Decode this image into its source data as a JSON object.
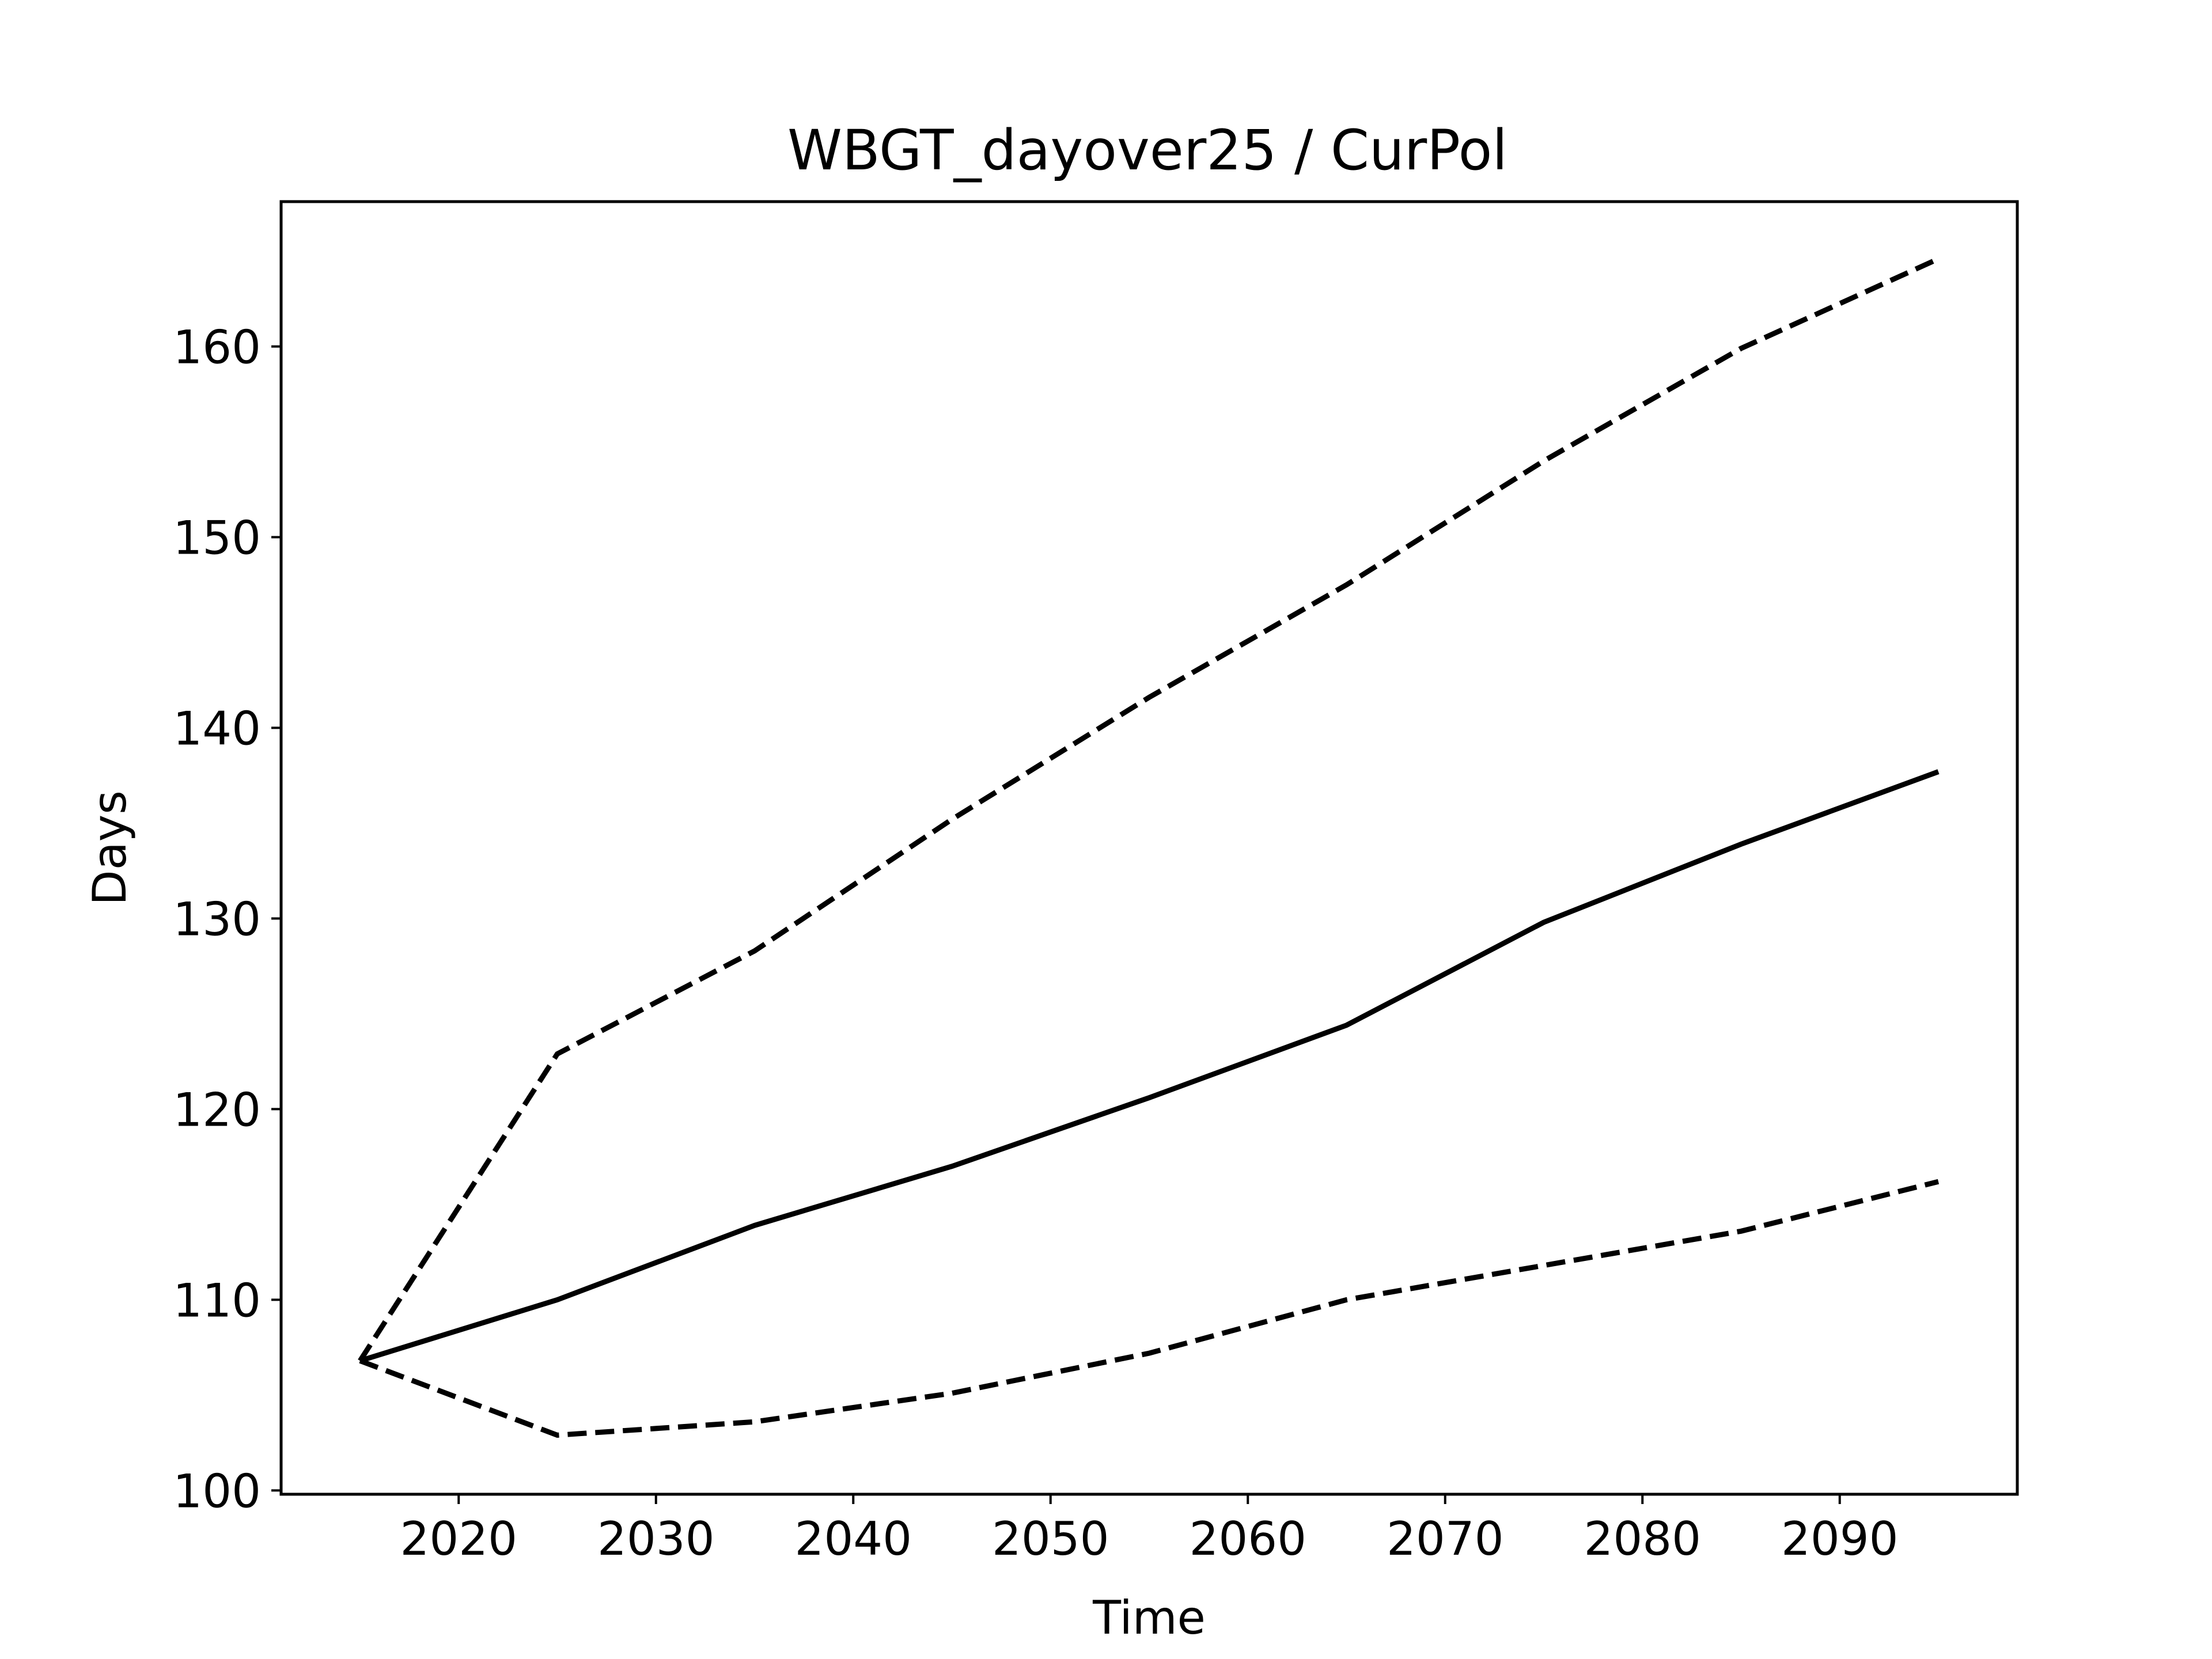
{
  "chart_data": {
    "type": "line",
    "title": "WBGT_dayover25 / CurPol",
    "xlabel": "Time",
    "ylabel": "Days",
    "xlim": [
      2011,
      2099
    ],
    "ylim": [
      99.8,
      167.6
    ],
    "xticks": [
      2020,
      2030,
      2040,
      2050,
      2060,
      2070,
      2080,
      2090
    ],
    "yticks": [
      100,
      110,
      120,
      130,
      140,
      150,
      160
    ],
    "grid": false,
    "legend": null,
    "series": [
      {
        "style": "solid",
        "color": "#000000",
        "x": [
          2015,
          2025,
          2035,
          2045,
          2055,
          2065,
          2075,
          2085,
          2095
        ],
        "y": [
          106.8,
          110.0,
          113.9,
          117.0,
          120.6,
          124.4,
          129.8,
          133.9,
          137.7
        ]
      },
      {
        "style": "dashed",
        "color": "#000000",
        "x": [
          2015,
          2025,
          2035,
          2045,
          2055,
          2065,
          2075,
          2085,
          2095
        ],
        "y": [
          106.8,
          122.9,
          128.3,
          135.2,
          141.6,
          147.5,
          154.0,
          159.9,
          164.6
        ]
      },
      {
        "style": "dashed",
        "color": "#000000",
        "x": [
          2015,
          2025,
          2035,
          2045,
          2055,
          2065,
          2075,
          2085,
          2095
        ],
        "y": [
          106.8,
          102.9,
          103.6,
          105.1,
          107.2,
          110.0,
          111.8,
          113.6,
          116.2
        ]
      }
    ]
  }
}
